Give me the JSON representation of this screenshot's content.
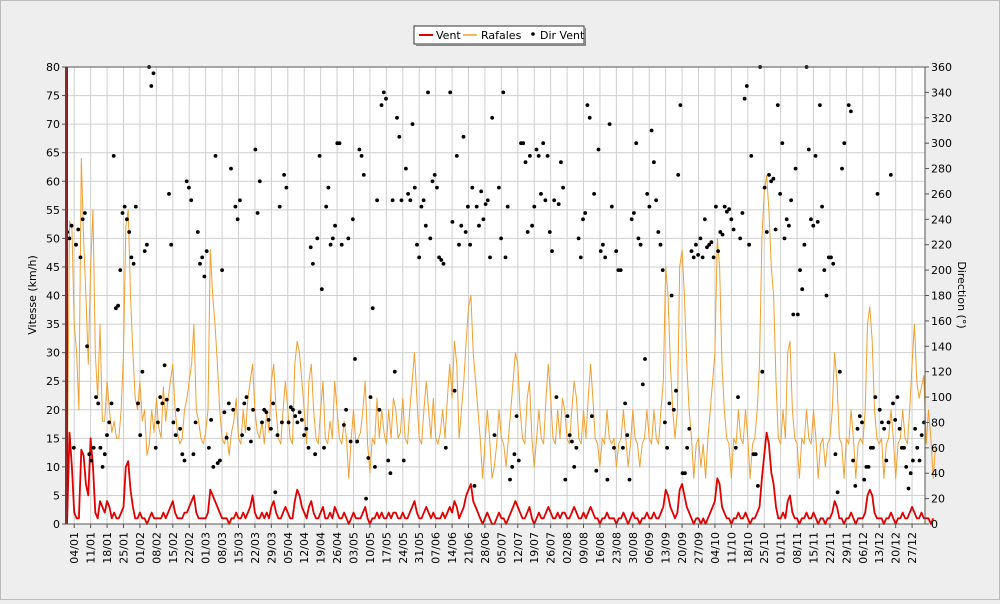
{
  "chart_data": {
    "type": "line",
    "title": "",
    "ylabel": "Vitesse (km/h)",
    "y2label": "Direction (°)",
    "ylim": [
      0,
      80
    ],
    "y2lim": [
      0,
      360
    ],
    "grid": true,
    "legend_position": "top-center",
    "x_start_day": "01/01",
    "x_days": 366,
    "x_ticks": [
      "04/01",
      "11/01",
      "18/01",
      "25/01",
      "01/02",
      "08/02",
      "15/02",
      "22/02",
      "01/03",
      "08/03",
      "15/03",
      "22/03",
      "29/03",
      "05/04",
      "12/04",
      "19/04",
      "26/04",
      "03/05",
      "10/05",
      "17/05",
      "24/05",
      "31/05",
      "07/06",
      "14/06",
      "21/06",
      "28/06",
      "05/07",
      "12/07",
      "19/07",
      "26/07",
      "02/08",
      "09/08",
      "16/08",
      "23/08",
      "30/08",
      "06/09",
      "13/09",
      "20/09",
      "27/09",
      "04/10",
      "11/10",
      "18/10",
      "25/10",
      "01/11",
      "08/11",
      "15/11",
      "22/11",
      "29/11",
      "06/12",
      "13/12",
      "20/12",
      "27/12"
    ],
    "y_ticks": [
      "0",
      "5",
      "10",
      "15",
      "20",
      "25",
      "30",
      "35",
      "40",
      "45",
      "50",
      "55",
      "60",
      "65",
      "70",
      "75",
      "80"
    ],
    "y2_ticks": [
      "0",
      "20",
      "40",
      "60",
      "80",
      "100",
      "120",
      "140",
      "160",
      "180",
      "200",
      "220",
      "240",
      "260",
      "280",
      "300",
      "320",
      "340",
      "360"
    ],
    "series": [
      {
        "name": "Vent",
        "style": "line",
        "color": "#e00000",
        "values": [
          1,
          16,
          10,
          2,
          1,
          1,
          13,
          12,
          7,
          5,
          15,
          10,
          2,
          1,
          4,
          3,
          2,
          4,
          3,
          1,
          2,
          1,
          1,
          2,
          3,
          10,
          11,
          6,
          3,
          1,
          1,
          2,
          1,
          1,
          0,
          1,
          2,
          1,
          1,
          1,
          1,
          2,
          1,
          2,
          3,
          4,
          2,
          1,
          1,
          1,
          2,
          2,
          3,
          4,
          5,
          2,
          1,
          1,
          1,
          1,
          2,
          6,
          5,
          4,
          3,
          2,
          1,
          1,
          1,
          0,
          1,
          1,
          2,
          1,
          1,
          2,
          1,
          2,
          3,
          5,
          2,
          1,
          1,
          2,
          1,
          2,
          1,
          3,
          4,
          2,
          1,
          1,
          2,
          3,
          2,
          1,
          1,
          4,
          6,
          5,
          3,
          2,
          1,
          3,
          4,
          2,
          1,
          1,
          2,
          3,
          1,
          1,
          2,
          1,
          3,
          2,
          1,
          1,
          2,
          1,
          0,
          1,
          2,
          1,
          1,
          1,
          2,
          3,
          1,
          0,
          1,
          1,
          2,
          1,
          2,
          1,
          1,
          2,
          1,
          2,
          2,
          1,
          1,
          2,
          1,
          1,
          2,
          3,
          4,
          2,
          1,
          1,
          2,
          3,
          2,
          1,
          2,
          1,
          1,
          1,
          2,
          1,
          2,
          3,
          2,
          4,
          3,
          1,
          2,
          3,
          5,
          6,
          7,
          4,
          3,
          2,
          1,
          0,
          1,
          2,
          1,
          0,
          0,
          1,
          2,
          1,
          1,
          0,
          1,
          2,
          3,
          4,
          3,
          2,
          1,
          1,
          2,
          3,
          1,
          0,
          1,
          2,
          1,
          1,
          2,
          3,
          2,
          1,
          1,
          2,
          1,
          2,
          2,
          1,
          1,
          2,
          3,
          2,
          1,
          1,
          2,
          1,
          2,
          3,
          2,
          1,
          1,
          0,
          1,
          1,
          2,
          1,
          1,
          1,
          0,
          1,
          1,
          2,
          1,
          0,
          1,
          2,
          1,
          1,
          0,
          1,
          1,
          2,
          1,
          1,
          2,
          1,
          1,
          2,
          3,
          6,
          5,
          3,
          2,
          1,
          2,
          6,
          7,
          5,
          3,
          2,
          1,
          0,
          1,
          1,
          0,
          1,
          0,
          1,
          2,
          3,
          4,
          8,
          7,
          3,
          2,
          1,
          1,
          0,
          1,
          1,
          2,
          1,
          1,
          2,
          1,
          0,
          1,
          1,
          2,
          3,
          8,
          12,
          16,
          14,
          9,
          7,
          3,
          1,
          1,
          2,
          1,
          4,
          5,
          2,
          1,
          1,
          0,
          1,
          1,
          2,
          1,
          1,
          2,
          1,
          0,
          1,
          1,
          0,
          1,
          1,
          2,
          4,
          3,
          1,
          1,
          0,
          1,
          1,
          2,
          1,
          0,
          1,
          1,
          1,
          2,
          5,
          6,
          5,
          2,
          1,
          1,
          1,
          0,
          1,
          1,
          2,
          1,
          0,
          1,
          1,
          2,
          1,
          1,
          2,
          3,
          2,
          1,
          1,
          2,
          1,
          1,
          1,
          0,
          1
        ]
      },
      {
        "name": "Rafales",
        "style": "line",
        "color": "#f0a030",
        "values": [
          6,
          53,
          52,
          35,
          30,
          20,
          64,
          50,
          40,
          28,
          45,
          55,
          30,
          22,
          35,
          18,
          18,
          25,
          20,
          16,
          18,
          15,
          15,
          20,
          30,
          52,
          55,
          40,
          30,
          22,
          20,
          25,
          18,
          20,
          12,
          14,
          20,
          16,
          22,
          17,
          15,
          24,
          18,
          22,
          25,
          28,
          20,
          16,
          14,
          15,
          20,
          22,
          25,
          28,
          35,
          20,
          18,
          15,
          14,
          16,
          20,
          48,
          40,
          35,
          28,
          20,
          15,
          14,
          16,
          12,
          16,
          18,
          22,
          15,
          14,
          20,
          16,
          22,
          25,
          28,
          20,
          16,
          15,
          18,
          14,
          20,
          16,
          25,
          28,
          20,
          15,
          14,
          20,
          25,
          20,
          15,
          14,
          28,
          32,
          30,
          25,
          20,
          14,
          25,
          28,
          20,
          15,
          14,
          20,
          25,
          15,
          14,
          18,
          15,
          25,
          20,
          15,
          14,
          18,
          15,
          8,
          15,
          20,
          14,
          15,
          16,
          20,
          25,
          14,
          9,
          15,
          14,
          22,
          15,
          20,
          16,
          14,
          20,
          15,
          22,
          20,
          15,
          16,
          22,
          15,
          14,
          20,
          25,
          30,
          22,
          15,
          14,
          20,
          25,
          20,
          15,
          22,
          15,
          14,
          16,
          20,
          15,
          22,
          28,
          22,
          32,
          28,
          15,
          20,
          25,
          32,
          38,
          40,
          30,
          25,
          20,
          15,
          8,
          14,
          20,
          15,
          8,
          10,
          14,
          20,
          15,
          14,
          10,
          15,
          20,
          25,
          30,
          28,
          20,
          15,
          14,
          22,
          25,
          15,
          10,
          15,
          20,
          15,
          14,
          22,
          28,
          22,
          15,
          14,
          20,
          15,
          22,
          20,
          15,
          14,
          20,
          25,
          22,
          15,
          14,
          20,
          15,
          22,
          28,
          22,
          15,
          14,
          10,
          15,
          14,
          20,
          15,
          14,
          15,
          10,
          14,
          15,
          20,
          15,
          10,
          14,
          20,
          15,
          14,
          10,
          14,
          15,
          20,
          15,
          14,
          20,
          15,
          14,
          20,
          25,
          45,
          40,
          28,
          20,
          15,
          20,
          45,
          48,
          40,
          28,
          20,
          15,
          8,
          14,
          15,
          10,
          14,
          8,
          15,
          20,
          25,
          30,
          50,
          45,
          28,
          20,
          15,
          14,
          8,
          15,
          14,
          20,
          15,
          14,
          20,
          15,
          8,
          14,
          15,
          20,
          28,
          50,
          58,
          61,
          55,
          45,
          40,
          25,
          15,
          14,
          20,
          15,
          30,
          32,
          20,
          15,
          14,
          8,
          15,
          14,
          20,
          15,
          14,
          20,
          15,
          8,
          14,
          15,
          10,
          14,
          15,
          20,
          30,
          25,
          15,
          14,
          8,
          15,
          14,
          20,
          15,
          8,
          14,
          15,
          14,
          20,
          35,
          38,
          32,
          20,
          15,
          14,
          15,
          8,
          14,
          15,
          20,
          15,
          8,
          14,
          15,
          20,
          15,
          14,
          20,
          28,
          35,
          25,
          22,
          24,
          26,
          14,
          20,
          15,
          8,
          14
        ]
      },
      {
        "name": "Dir Vent",
        "style": "points",
        "color": "#000000",
        "values": [
          230,
          225,
          235,
          60,
          220,
          232,
          210,
          240,
          245,
          140,
          55,
          50,
          60,
          100,
          95,
          60,
          45,
          55,
          70,
          80,
          95,
          290,
          170,
          172,
          200,
          245,
          250,
          240,
          230,
          210,
          205,
          250,
          95,
          70,
          120,
          215,
          220,
          360,
          345,
          355,
          60,
          80,
          100,
          95,
          125,
          98,
          260,
          220,
          80,
          70,
          90,
          75,
          55,
          50,
          270,
          265,
          255,
          55,
          80,
          230,
          205,
          210,
          195,
          215,
          60,
          82,
          45,
          290,
          48,
          50,
          200,
          88,
          68,
          95,
          280,
          90,
          250,
          240,
          255,
          70,
          95,
          100,
          75,
          65,
          90,
          295,
          245,
          270,
          80,
          90,
          88,
          82,
          75,
          95,
          25,
          70,
          250,
          80,
          275,
          265,
          80,
          92,
          90,
          85,
          80,
          88,
          82,
          70,
          75,
          60,
          218,
          205,
          55,
          225,
          290,
          185,
          60,
          250,
          265,
          220,
          225,
          235,
          300,
          300,
          220,
          78,
          90,
          225,
          65,
          240,
          130,
          65,
          295,
          290,
          275,
          20,
          52,
          100,
          170,
          45,
          255,
          90,
          330,
          340,
          335,
          50,
          40,
          255,
          120,
          320,
          305,
          255,
          50,
          280,
          260,
          255,
          315,
          265,
          220,
          210,
          250,
          255,
          235,
          340,
          225,
          270,
          275,
          265,
          210,
          208,
          205,
          60,
          365,
          340,
          238,
          105,
          290,
          220,
          235,
          305,
          230,
          250,
          220,
          265,
          30,
          250,
          235,
          262,
          240,
          252,
          255,
          210,
          320,
          70,
          365,
          265,
          225,
          340,
          210,
          250,
          35,
          45,
          55,
          85,
          50,
          300,
          300,
          285,
          230,
          290,
          235,
          250,
          295,
          290,
          260,
          300,
          255,
          290,
          230,
          215,
          255,
          100,
          252,
          285,
          265,
          35,
          85,
          70,
          65,
          45,
          60,
          225,
          210,
          240,
          245,
          330,
          320,
          85,
          260,
          42,
          295,
          215,
          220,
          210,
          35,
          315,
          250,
          60,
          215,
          200,
          200,
          60,
          95,
          70,
          35,
          240,
          245,
          300,
          225,
          220,
          110,
          130,
          260,
          250,
          310,
          285,
          255,
          230,
          220,
          200,
          80,
          60,
          95,
          180,
          90,
          105,
          275,
          330,
          40,
          40,
          60,
          75,
          215,
          210,
          220,
          212,
          225,
          210,
          240,
          218,
          220,
          222,
          210,
          250,
          215,
          230,
          228,
          250,
          246,
          248,
          240,
          232,
          60,
          100,
          225,
          245,
          335,
          345,
          220,
          290,
          55,
          55,
          30,
          360,
          120,
          265,
          230,
          275,
          270,
          272,
          232,
          330,
          260,
          300,
          225,
          240,
          235,
          255,
          165,
          280,
          165,
          200,
          185,
          220,
          360,
          295,
          240,
          235,
          290,
          238,
          330,
          250,
          200,
          180,
          210,
          210,
          205,
          55,
          25,
          120,
          280,
          300,
          370,
          330,
          325,
          50,
          30,
          75,
          85,
          80,
          35,
          45,
          45,
          60,
          60,
          100,
          260,
          90,
          80,
          75,
          50,
          80,
          275,
          95,
          82,
          100,
          75,
          60,
          60,
          45,
          28,
          40,
          50,
          75,
          60,
          50,
          70,
          80
        ]
      }
    ]
  }
}
